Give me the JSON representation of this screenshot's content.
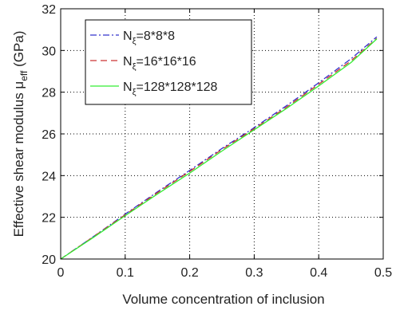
{
  "chart_data": {
    "type": "line",
    "xlabel": "Volume concentration of inclusion",
    "ylabel": {
      "main": "Effective shear modulus μ",
      "sub": "eff",
      "unit": " (GPa)"
    },
    "xlim": [
      0,
      0.5
    ],
    "ylim": [
      20,
      32
    ],
    "xticks": [
      0,
      0.1,
      0.2,
      0.3,
      0.4,
      0.5
    ],
    "xtick_labels": [
      "0",
      "0.1",
      "0.2",
      "0.3",
      "0.4",
      "0.5"
    ],
    "yticks": [
      20,
      22,
      24,
      26,
      28,
      30,
      32
    ],
    "ytick_labels": [
      "20",
      "22",
      "24",
      "26",
      "28",
      "30",
      "32"
    ],
    "grid": true,
    "grid_style": "dotted",
    "legend_position": "top-left",
    "series": [
      {
        "name": "Nξ=8*8*8",
        "legend": {
          "base": "N",
          "sub": "ξ",
          "rest": "=8*8*8"
        },
        "color": "#3333cc",
        "style": "dashdot",
        "x": [
          0,
          0.05,
          0.1,
          0.15,
          0.2,
          0.25,
          0.3,
          0.35,
          0.4,
          0.45,
          0.49
        ],
        "values": [
          20.0,
          21.06,
          22.15,
          23.22,
          24.25,
          25.3,
          26.3,
          27.35,
          28.45,
          29.6,
          30.65
        ]
      },
      {
        "name": "Nξ=16*16*16",
        "legend": {
          "base": "N",
          "sub": "ξ",
          "rest": "=16*16*16"
        },
        "color": "#cc3333",
        "style": "dashed",
        "x": [
          0,
          0.05,
          0.1,
          0.15,
          0.2,
          0.25,
          0.3,
          0.35,
          0.4,
          0.45,
          0.49
        ],
        "values": [
          20.0,
          21.05,
          22.12,
          23.18,
          24.2,
          25.25,
          26.25,
          27.28,
          28.38,
          29.5,
          30.58
        ]
      },
      {
        "name": "Nξ=128*128*128",
        "legend": {
          "base": "N",
          "sub": "ξ",
          "rest": "=128*128*128"
        },
        "color": "#33ee33",
        "style": "solid",
        "x": [
          0,
          0.05,
          0.1,
          0.15,
          0.2,
          0.25,
          0.3,
          0.35,
          0.4,
          0.45,
          0.49
        ],
        "values": [
          20.0,
          21.02,
          22.08,
          23.12,
          24.12,
          25.18,
          26.2,
          27.22,
          28.3,
          29.42,
          30.55
        ]
      }
    ]
  }
}
